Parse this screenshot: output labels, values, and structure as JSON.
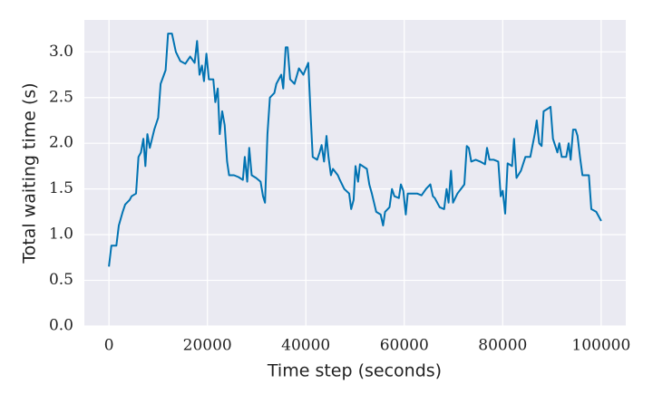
{
  "chart_data": {
    "type": "line",
    "xlabel": "Time step (seconds)",
    "ylabel": "Total waiting time (s)",
    "xlim": [
      -5000,
      105000
    ],
    "ylim": [
      0,
      3.35
    ],
    "xticks": [
      0,
      20000,
      40000,
      60000,
      80000,
      100000
    ],
    "yticks": [
      {
        "value": 0,
        "label": "0.0"
      },
      0.5,
      {
        "value": 1,
        "label": "1.0"
      },
      1.5,
      {
        "value": 2,
        "label": "2.0"
      },
      2.5,
      {
        "value": 3,
        "label": "3.0"
      }
    ],
    "grid": true,
    "background": "#eaeaf2",
    "series": [
      {
        "color": "#0173b2",
        "x": [
          0,
          500,
          1500,
          2000,
          2800,
          3300,
          4200,
          4600,
          5500,
          6000,
          6500,
          7000,
          7400,
          7800,
          8300,
          9200,
          10000,
          10500,
          11500,
          12000,
          12800,
          13600,
          14500,
          15500,
          16500,
          17400,
          17900,
          18400,
          18900,
          19300,
          19800,
          20300,
          21200,
          21600,
          22100,
          22500,
          23000,
          23500,
          24000,
          24400,
          25400,
          26300,
          27200,
          27600,
          28100,
          28500,
          29000,
          29900,
          30800,
          31300,
          31700,
          32200,
          32700,
          33600,
          34000,
          35000,
          35400,
          35900,
          36300,
          36800,
          37700,
          38600,
          39500,
          40500,
          41000,
          41400,
          42300,
          42800,
          43200,
          43700,
          44200,
          44600,
          45100,
          45500,
          46500,
          46900,
          47800,
          48800,
          49200,
          49700,
          50100,
          50600,
          51000,
          52400,
          52900,
          53400,
          54300,
          55200,
          55700,
          56100,
          57000,
          57500,
          58000,
          58900,
          59300,
          59800,
          60300,
          60700,
          61600,
          62600,
          63500,
          64400,
          65300,
          65800,
          66200,
          67200,
          68100,
          68600,
          69000,
          69500,
          69900,
          70800,
          71800,
          72200,
          72700,
          73100,
          73600,
          74500,
          75400,
          76400,
          76800,
          77300,
          78200,
          79100,
          79600,
          80000,
          80500,
          81000,
          81900,
          82300,
          82800,
          83700,
          84600,
          85600,
          86500,
          86900,
          87400,
          87900,
          88300,
          89200,
          89700,
          90200,
          91100,
          91500,
          92000,
          92900,
          93400,
          93800,
          94300,
          94800,
          95200,
          95700,
          96200,
          97500,
          98000,
          99000,
          100000
        ],
        "values": [
          0.65,
          0.88,
          0.88,
          1.1,
          1.25,
          1.33,
          1.38,
          1.42,
          1.45,
          1.85,
          1.9,
          2.05,
          1.75,
          2.1,
          1.95,
          2.15,
          2.28,
          2.65,
          2.8,
          3.2,
          3.2,
          3.0,
          2.9,
          2.87,
          2.95,
          2.88,
          3.12,
          2.75,
          2.85,
          2.68,
          2.98,
          2.7,
          2.7,
          2.45,
          2.6,
          2.1,
          2.35,
          2.2,
          1.8,
          1.65,
          1.65,
          1.63,
          1.6,
          1.85,
          1.58,
          1.95,
          1.65,
          1.62,
          1.58,
          1.42,
          1.35,
          2.1,
          2.5,
          2.55,
          2.65,
          2.75,
          2.6,
          3.05,
          3.05,
          2.7,
          2.65,
          2.82,
          2.75,
          2.88,
          2.27,
          1.85,
          1.82,
          1.9,
          1.98,
          1.8,
          2.08,
          1.85,
          1.65,
          1.72,
          1.65,
          1.6,
          1.5,
          1.45,
          1.28,
          1.38,
          1.75,
          1.58,
          1.77,
          1.72,
          1.55,
          1.45,
          1.25,
          1.22,
          1.1,
          1.25,
          1.3,
          1.5,
          1.42,
          1.4,
          1.55,
          1.48,
          1.22,
          1.45,
          1.45,
          1.45,
          1.43,
          1.5,
          1.55,
          1.42,
          1.4,
          1.3,
          1.28,
          1.5,
          1.35,
          1.7,
          1.35,
          1.45,
          1.52,
          1.55,
          1.97,
          1.95,
          1.8,
          1.82,
          1.8,
          1.77,
          1.95,
          1.82,
          1.82,
          1.8,
          1.42,
          1.48,
          1.23,
          1.78,
          1.75,
          2.05,
          1.62,
          1.7,
          1.85,
          1.85,
          2.1,
          2.25,
          2.0,
          1.97,
          2.35,
          2.38,
          2.4,
          2.05,
          1.9,
          2.0,
          1.85,
          1.85,
          2.0,
          1.82,
          2.15,
          2.15,
          2.08,
          1.85,
          1.65,
          1.65,
          1.28,
          1.25,
          1.15
        ]
      }
    ]
  }
}
